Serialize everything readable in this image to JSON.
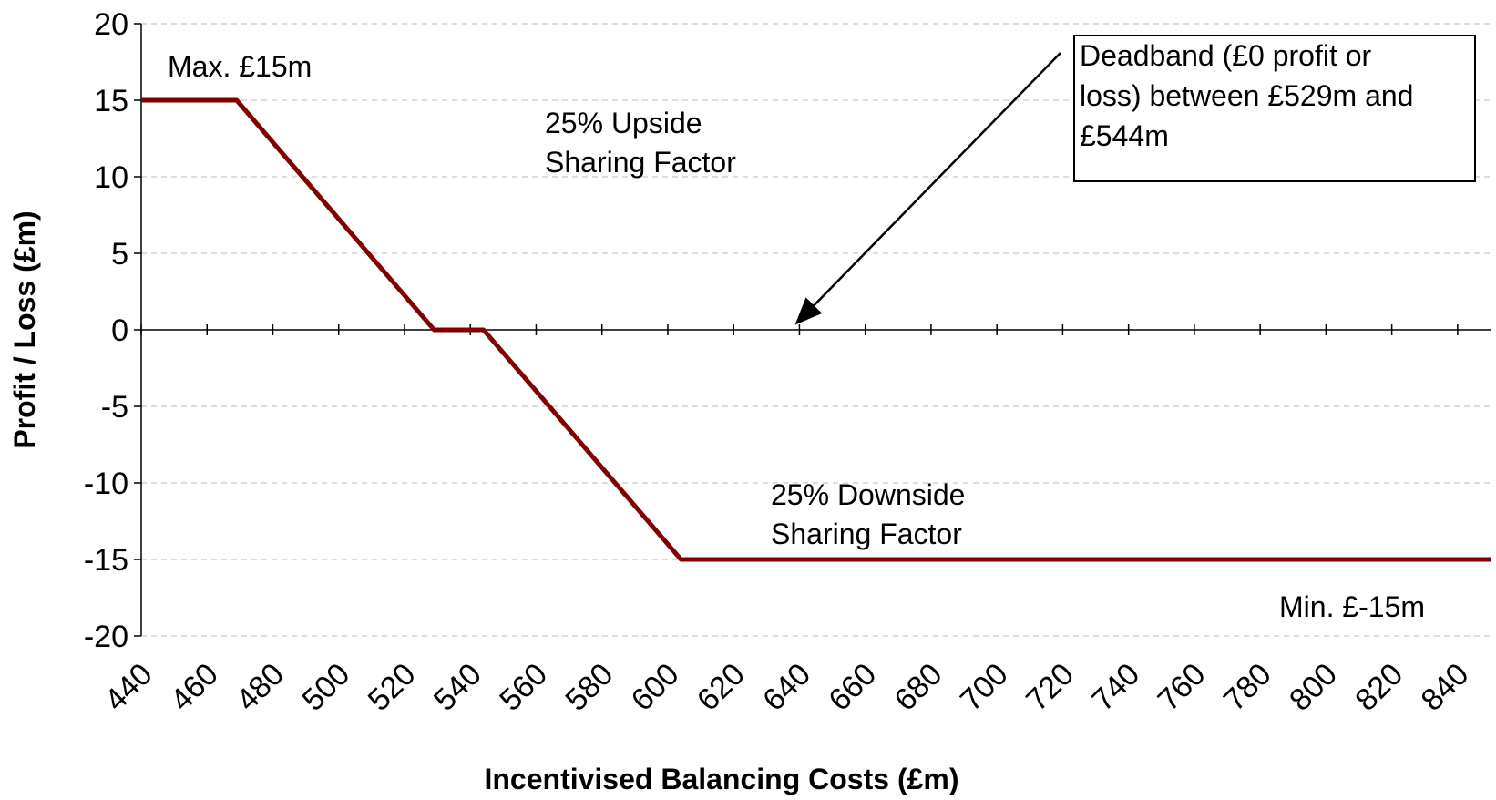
{
  "chart_data": {
    "type": "line",
    "x_label": "Incentivised Balancing Costs (£m)",
    "y_label": "Profit / Loss (£m)",
    "x": [
      440,
      469,
      529,
      544,
      604,
      850
    ],
    "series": [
      {
        "name": "Profit / Loss",
        "color": "#800000",
        "values": [
          15,
          15,
          0,
          0,
          -15,
          -15
        ]
      }
    ],
    "xlim": [
      440,
      850
    ],
    "xticks": [
      440,
      460,
      480,
      500,
      520,
      540,
      560,
      580,
      600,
      620,
      640,
      660,
      680,
      700,
      720,
      740,
      760,
      780,
      800,
      820,
      840
    ],
    "ylim": [
      -20,
      20
    ],
    "yticks": [
      -20,
      -15,
      -10,
      -5,
      0,
      5,
      10,
      15,
      20
    ],
    "grid": true,
    "annotations": {
      "max": "Max. £15m",
      "upside": [
        "25% Upside",
        "Sharing Factor"
      ],
      "downside": [
        "25% Downside",
        "Sharing Factor"
      ],
      "min": "Min. £-15m",
      "deadband": [
        "Deadband (£0 profit or",
        "loss) between £529m and",
        "£544m"
      ]
    }
  }
}
